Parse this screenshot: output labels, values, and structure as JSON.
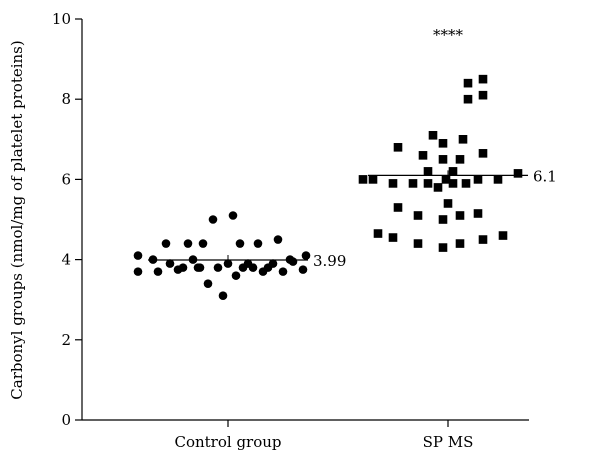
{
  "chart_data": {
    "type": "scatter",
    "ylabel": "Carbonyl groups (nmol/mg of platelet proteins)",
    "ylim": [
      0,
      10
    ],
    "yticks": [
      0,
      2,
      4,
      6,
      8,
      10
    ],
    "categories": [
      "Control group",
      "SP MS"
    ],
    "series": [
      {
        "category": "Control group",
        "marker": "circle",
        "mean": 3.99,
        "mean_label": "3.99",
        "points": [
          [
            -0.9,
            4.1
          ],
          [
            -0.9,
            3.7
          ],
          [
            -0.75,
            4.0
          ],
          [
            -0.7,
            3.7
          ],
          [
            -0.62,
            4.4
          ],
          [
            -0.58,
            3.9
          ],
          [
            -0.5,
            3.75
          ],
          [
            -0.45,
            3.8
          ],
          [
            -0.4,
            4.4
          ],
          [
            -0.35,
            4.0
          ],
          [
            -0.28,
            3.8
          ],
          [
            -0.25,
            4.4
          ],
          [
            -0.2,
            3.4
          ],
          [
            -0.15,
            5.0
          ],
          [
            -0.1,
            3.8
          ],
          [
            -0.05,
            3.1
          ],
          [
            0.0,
            3.9
          ],
          [
            0.05,
            5.1
          ],
          [
            0.08,
            3.6
          ],
          [
            0.12,
            4.4
          ],
          [
            0.15,
            3.8
          ],
          [
            0.2,
            3.9
          ],
          [
            0.25,
            3.8
          ],
          [
            0.3,
            4.4
          ],
          [
            0.35,
            3.7
          ],
          [
            0.45,
            3.9
          ],
          [
            0.5,
            4.5
          ],
          [
            0.55,
            3.7
          ],
          [
            0.65,
            3.95
          ],
          [
            0.75,
            3.75
          ],
          [
            0.78,
            4.1
          ],
          [
            0.62,
            4.0
          ],
          [
            0.4,
            3.8
          ],
          [
            -0.3,
            3.8
          ]
        ]
      },
      {
        "category": "SP MS",
        "marker": "square",
        "mean": 6.1,
        "mean_label": "6.1",
        "annotation": "****",
        "points": [
          [
            -0.85,
            6.0
          ],
          [
            -0.75,
            6.0
          ],
          [
            -0.7,
            4.65
          ],
          [
            -0.55,
            5.9
          ],
          [
            -0.55,
            4.55
          ],
          [
            -0.5,
            6.8
          ],
          [
            -0.5,
            5.3
          ],
          [
            -0.35,
            5.9
          ],
          [
            -0.3,
            4.4
          ],
          [
            -0.3,
            5.1
          ],
          [
            -0.25,
            6.6
          ],
          [
            -0.2,
            5.9
          ],
          [
            -0.2,
            6.2
          ],
          [
            -0.15,
            7.1
          ],
          [
            -0.1,
            5.8
          ],
          [
            -0.05,
            4.3
          ],
          [
            -0.05,
            5.0
          ],
          [
            -0.05,
            6.5
          ],
          [
            -0.05,
            6.9
          ],
          [
            0.0,
            5.4
          ],
          [
            0.05,
            5.9
          ],
          [
            0.05,
            6.2
          ],
          [
            0.12,
            6.5
          ],
          [
            0.12,
            4.4
          ],
          [
            0.12,
            5.1
          ],
          [
            0.15,
            7.0
          ],
          [
            0.18,
            5.9
          ],
          [
            0.2,
            8.0
          ],
          [
            0.2,
            8.4
          ],
          [
            0.3,
            6.0
          ],
          [
            0.3,
            5.15
          ],
          [
            0.35,
            8.1
          ],
          [
            0.35,
            8.5
          ],
          [
            0.35,
            6.65
          ],
          [
            0.35,
            4.5
          ],
          [
            0.5,
            6.0
          ],
          [
            0.55,
            4.6
          ],
          [
            0.7,
            6.15
          ],
          [
            -0.02,
            6.0
          ]
        ]
      }
    ]
  }
}
